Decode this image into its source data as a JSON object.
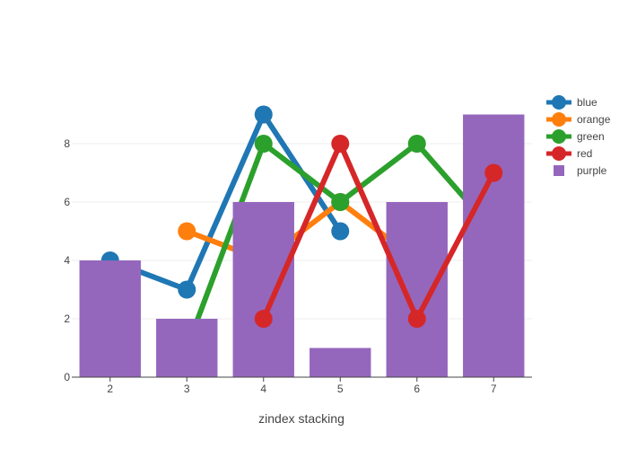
{
  "chart_data": {
    "type": "bar+line",
    "xlabel": "zindex stacking",
    "ylabel": "",
    "xlim": [
      1.5,
      7.5
    ],
    "ylim": [
      0,
      10
    ],
    "x_ticks": [
      "2",
      "3",
      "4",
      "5",
      "6",
      "7"
    ],
    "y_ticks": [
      "0",
      "2",
      "4",
      "6",
      "8"
    ],
    "grid": true,
    "legend_position": "right",
    "series": [
      {
        "name": "purple",
        "type": "bar",
        "color": "#9467bd",
        "x": [
          2,
          3,
          4,
          5,
          6,
          7
        ],
        "y": [
          4,
          2,
          6,
          1,
          6,
          9
        ]
      },
      {
        "name": "blue",
        "type": "line",
        "color": "#1f77b4",
        "x": [
          2,
          3,
          4,
          5
        ],
        "y": [
          4,
          3,
          9,
          5
        ]
      },
      {
        "name": "orange",
        "type": "line",
        "color": "#ff7f0e",
        "x": [
          3,
          4,
          5,
          6
        ],
        "y": [
          5,
          4,
          6,
          4
        ]
      },
      {
        "name": "green",
        "type": "line",
        "color": "#2ca02c",
        "x": [
          3,
          4,
          5,
          6,
          7
        ],
        "y": [
          1,
          8,
          6,
          8,
          5
        ]
      },
      {
        "name": "red",
        "type": "line",
        "color": "#d62728",
        "x": [
          4,
          5,
          6,
          7
        ],
        "y": [
          2,
          8,
          2,
          7
        ]
      }
    ],
    "draw_order": [
      "blue",
      "orange",
      "green",
      "purple",
      "red"
    ],
    "legend_order": [
      "blue",
      "orange",
      "green",
      "red",
      "purple"
    ]
  }
}
